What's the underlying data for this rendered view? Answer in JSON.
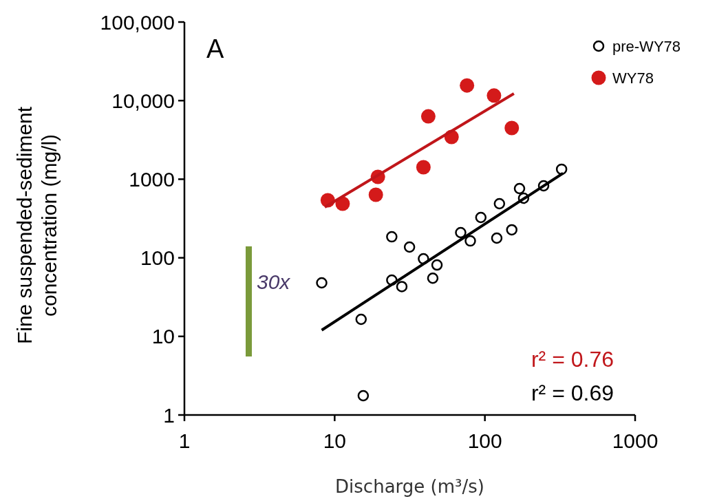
{
  "chart_data": {
    "type": "scatter",
    "xlabel": "Discharge (m³/s)",
    "ylabel": "Fine suspended-sediment concentration (mg/l)",
    "log": "xy",
    "xlim": [
      1,
      1000
    ],
    "ylim": [
      1,
      100000
    ],
    "xticks": [
      1,
      10,
      100,
      1000
    ],
    "yticks": [
      1,
      10,
      100,
      1000,
      {
        "value": 10000,
        "label": "10,000"
      },
      {
        "value": 100000,
        "label": "100,000"
      }
    ],
    "grid": false,
    "legend": "top right",
    "series": [
      {
        "name": "pre-WY78",
        "marker": "circle",
        "color": "#000000",
        "x": [
          8.2,
          15,
          15.5,
          24,
          24,
          28,
          31.5,
          39,
          45,
          48,
          69,
          80,
          94,
          120,
          125,
          151,
          170,
          181,
          246,
          324
        ],
        "values": [
          48,
          16.5,
          1.76,
          185,
          52,
          43,
          137,
          97,
          55,
          81,
          209,
          164,
          326,
          178,
          488,
          227,
          760,
          573,
          824,
          1340
        ]
      },
      {
        "name": "WY78",
        "marker": "circle",
        "color": "#d41a1a",
        "x": [
          9,
          11.3,
          18.8,
          19.4,
          39,
          42,
          60,
          76,
          115,
          151
        ],
        "values": [
          540,
          488,
          634,
          1070,
          1420,
          6300,
          3450,
          15600,
          11600,
          4480
        ]
      },
      {
        "type": "line",
        "color": "#000000",
        "x": [
          8.2,
          331
        ],
        "values": [
          12,
          1190
        ]
      },
      {
        "type": "line",
        "color": "#c0161a",
        "x": [
          8.6,
          156
        ],
        "values": [
          441,
          12300
        ]
      }
    ],
    "annotations": [
      "A",
      "30x",
      "r² = 0.76",
      "r² = 0.69"
    ]
  }
}
